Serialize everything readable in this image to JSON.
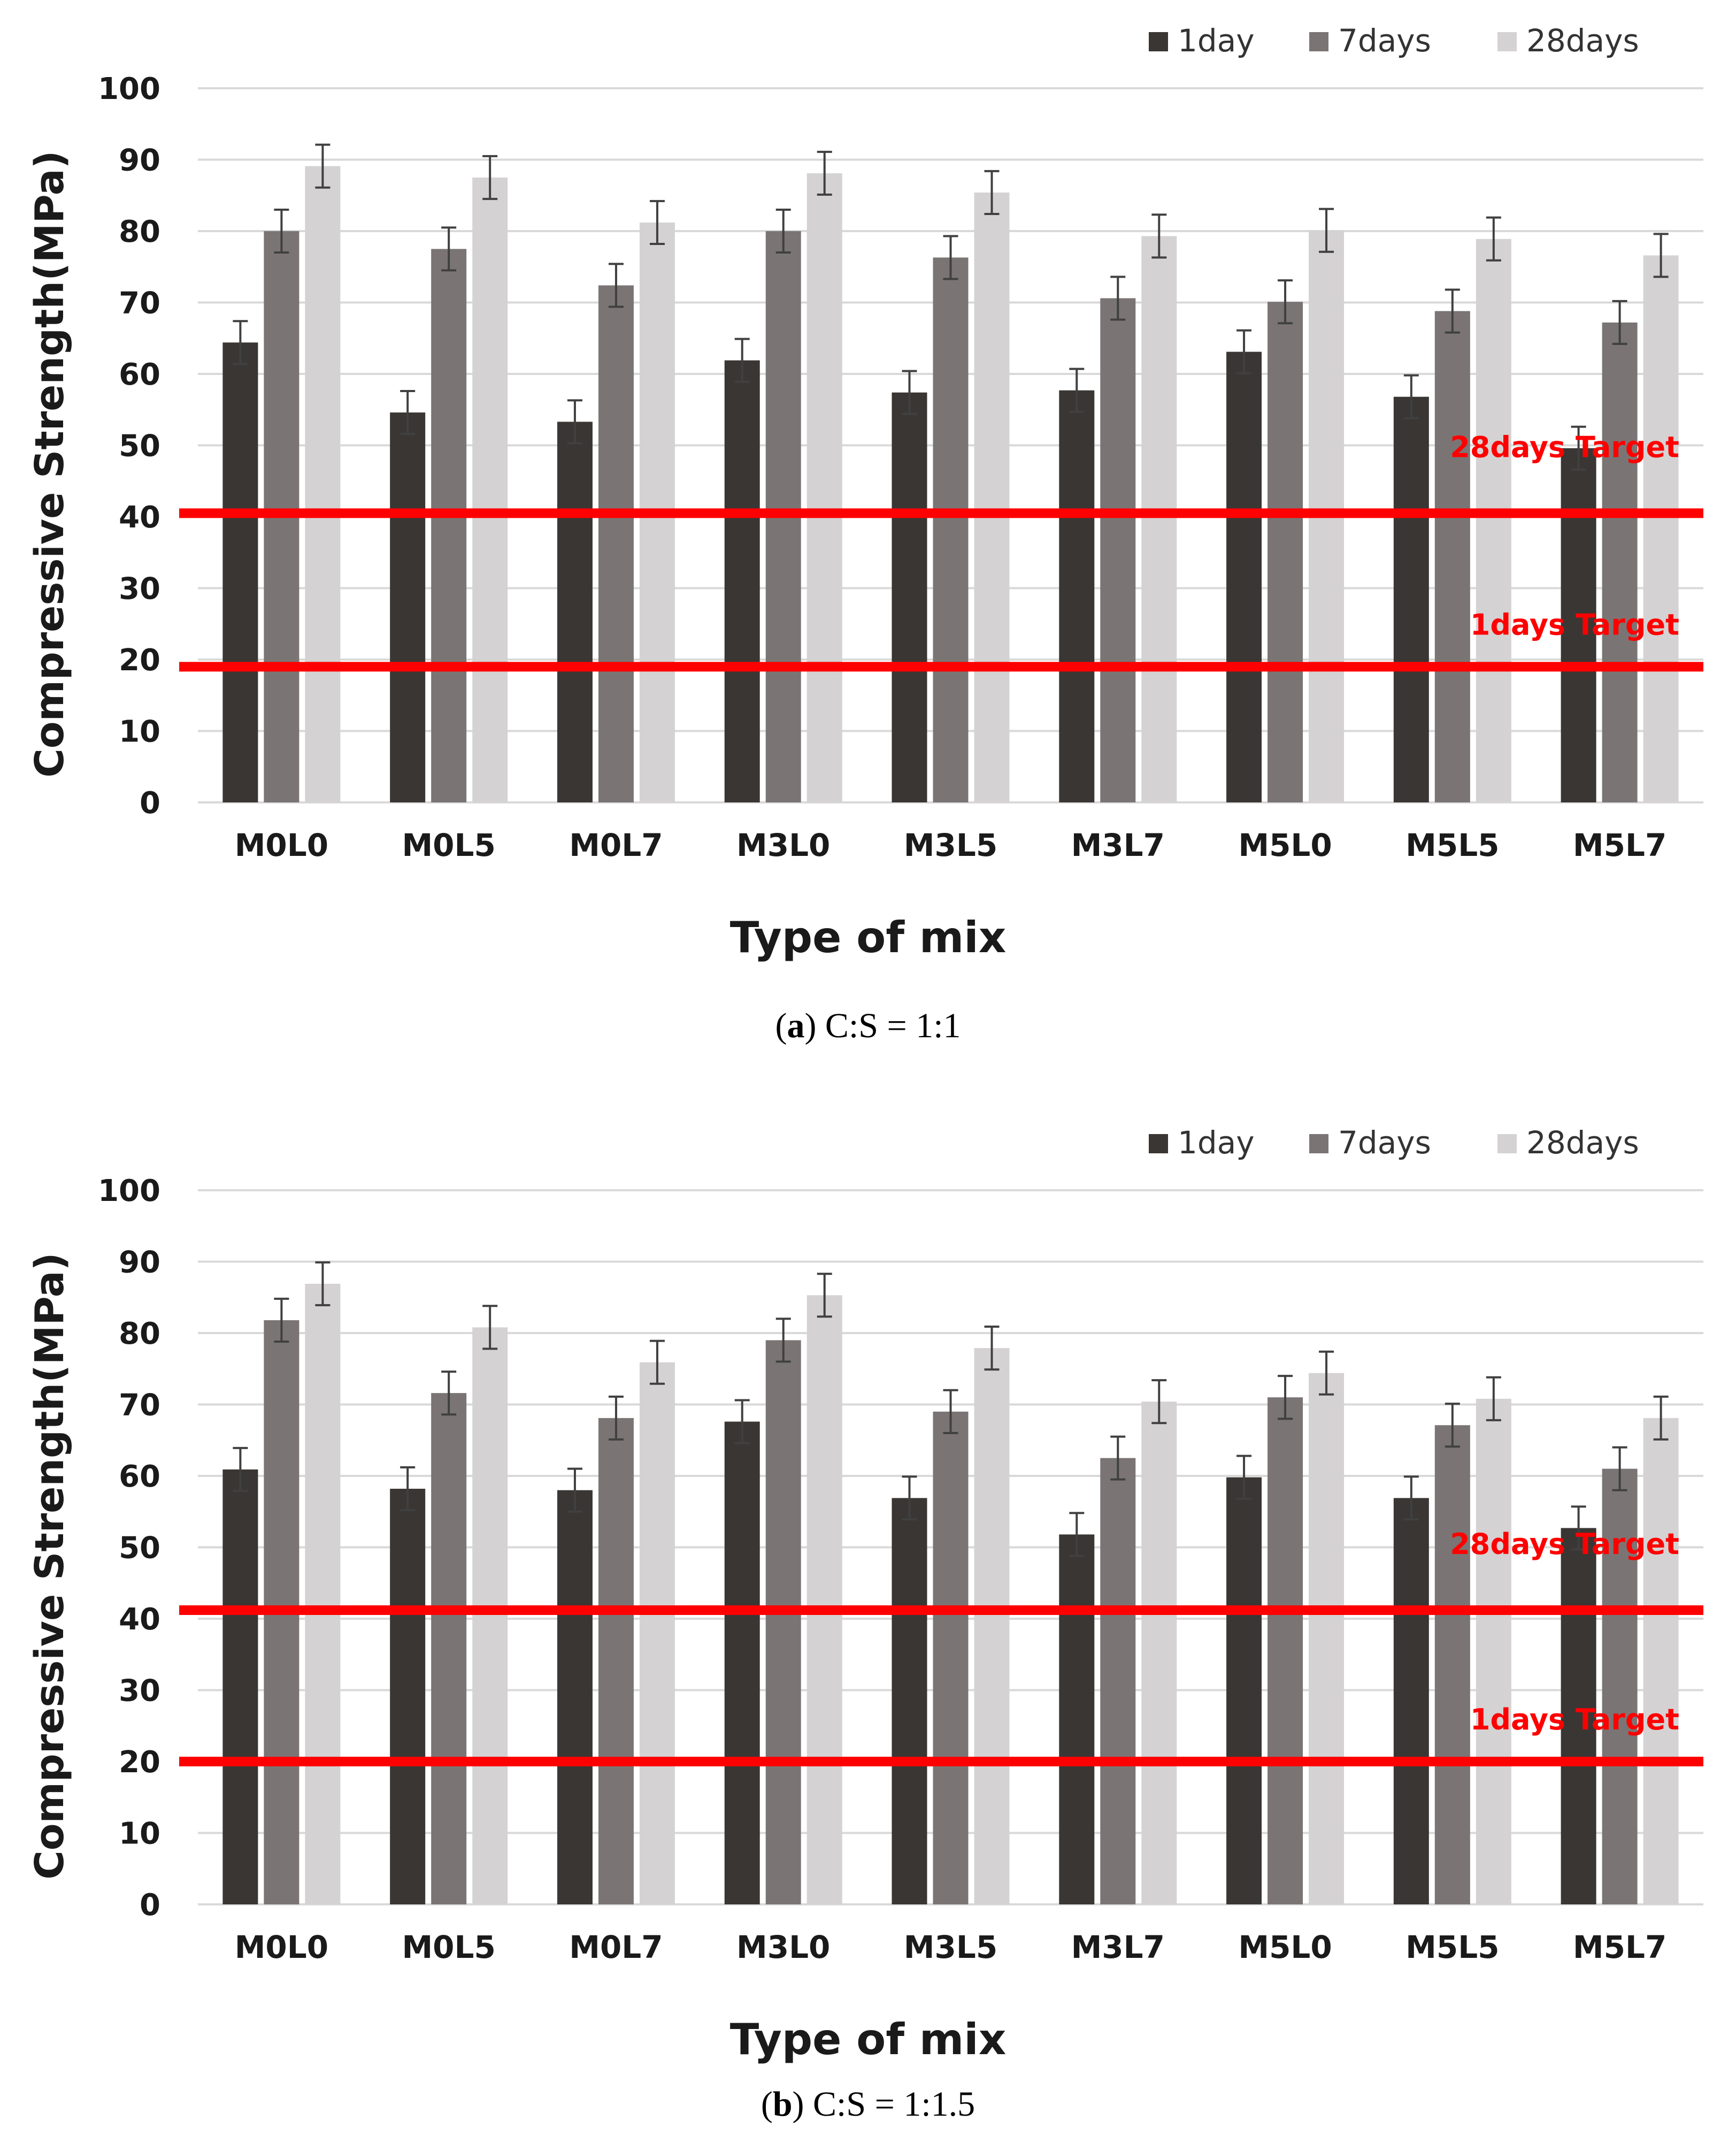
{
  "figure": {
    "colors": {
      "day1": "#3a3634",
      "day7": "#7a7574",
      "day28": "#d5d2d3",
      "target": "#ff0000",
      "grid": "#d9d9d9",
      "error": "#404040"
    },
    "legend_labels": [
      "1day",
      "7days",
      "28days"
    ]
  },
  "chart_data": [
    {
      "type": "bar",
      "panel_letter": "a",
      "caption": "C:S = 1:1",
      "categories": [
        "M0L0",
        "M0L5",
        "M0L7",
        "M3L0",
        "M3L5",
        "M3L7",
        "M5L0",
        "M5L5",
        "M5L7"
      ],
      "series": [
        {
          "name": "1day",
          "values": [
            64.4,
            54.6,
            53.3,
            61.9,
            57.4,
            57.7,
            63.1,
            56.8,
            49.6
          ]
        },
        {
          "name": "7days",
          "values": [
            80.0,
            77.5,
            72.4,
            80.0,
            76.3,
            70.6,
            70.1,
            68.8,
            67.2
          ]
        },
        {
          "name": "28days",
          "values": [
            89.1,
            87.5,
            81.2,
            88.1,
            85.4,
            79.3,
            80.1,
            78.9,
            76.6
          ]
        }
      ],
      "error": 3,
      "targets": [
        {
          "label": "28days Target",
          "value": 40.5
        },
        {
          "label": "1days Target",
          "value": 19.0
        }
      ],
      "title": "",
      "xlabel": "Type of mix",
      "ylabel": "Compressive Strength(MPa)",
      "ylim": [
        0,
        100
      ],
      "yticks": [
        "0",
        "10",
        "20",
        "30",
        "40",
        "50",
        "60",
        "70",
        "80",
        "90",
        "100"
      ],
      "grid": true,
      "legend": "top-right"
    },
    {
      "type": "bar",
      "panel_letter": "b",
      "caption": "C:S = 1:1.5",
      "categories": [
        "M0L0",
        "M0L5",
        "M0L7",
        "M3L0",
        "M3L5",
        "M3L7",
        "M5L0",
        "M5L5",
        "M5L7"
      ],
      "series": [
        {
          "name": "1day",
          "values": [
            60.9,
            58.2,
            58.0,
            67.6,
            56.9,
            51.8,
            59.8,
            56.9,
            52.7
          ]
        },
        {
          "name": "7days",
          "values": [
            81.8,
            71.6,
            68.1,
            79.0,
            69.0,
            62.5,
            71.0,
            67.1,
            61.0
          ]
        },
        {
          "name": "28days",
          "values": [
            86.9,
            80.8,
            75.9,
            85.3,
            77.9,
            70.4,
            74.4,
            70.8,
            68.1
          ]
        }
      ],
      "error": 3,
      "targets": [
        {
          "label": "28days Target",
          "value": 41.2
        },
        {
          "label": "1days Target",
          "value": 20.0
        }
      ],
      "title": "",
      "xlabel": "Type of mix",
      "ylabel": "Compressive Strength(MPa)",
      "ylim": [
        0,
        100
      ],
      "yticks": [
        "0",
        "10",
        "20",
        "30",
        "40",
        "50",
        "60",
        "70",
        "80",
        "90",
        "100"
      ],
      "grid": true,
      "legend": "top-right"
    }
  ]
}
